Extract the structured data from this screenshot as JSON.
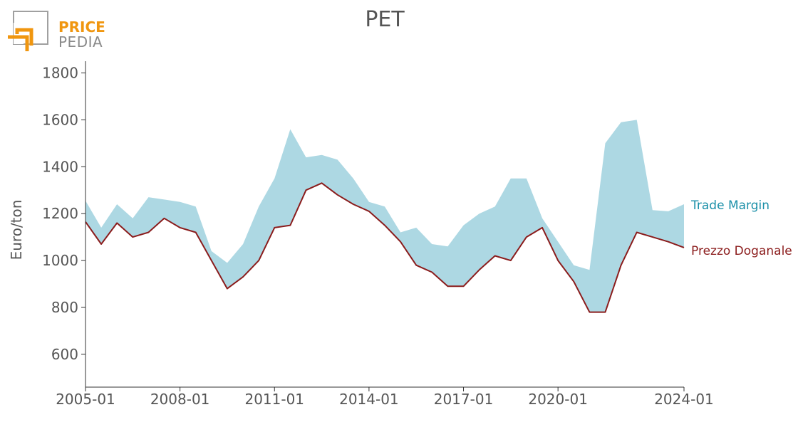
{
  "logo": {
    "line1": "PRICE",
    "line2": "PEDIA"
  },
  "colors": {
    "band": "#add8e3",
    "line": "#8b1c1c",
    "margin_label": "#1a8fa8",
    "axis": "#333333",
    "tick_text": "#555555"
  },
  "chart_data": {
    "type": "area",
    "title": "PET",
    "ylabel": "Euro/ton",
    "xlabel": "",
    "ylim": [
      460,
      1850
    ],
    "xlim": [
      "2005-01",
      "2024-01"
    ],
    "yticks": [
      600,
      800,
      1000,
      1200,
      1400,
      1600,
      1800
    ],
    "xticks": [
      "2005-01",
      "2008-01",
      "2011-01",
      "2014-01",
      "2017-01",
      "2020-01",
      "2024-01"
    ],
    "grid": false,
    "legend": "inline-right",
    "x": [
      "2005-01",
      "2005-07",
      "2006-01",
      "2006-07",
      "2007-01",
      "2007-07",
      "2008-01",
      "2008-07",
      "2009-01",
      "2009-07",
      "2010-01",
      "2010-07",
      "2011-01",
      "2011-07",
      "2012-01",
      "2012-07",
      "2013-01",
      "2013-07",
      "2014-01",
      "2014-07",
      "2015-01",
      "2015-07",
      "2016-01",
      "2016-07",
      "2017-01",
      "2017-07",
      "2018-01",
      "2018-07",
      "2019-01",
      "2019-07",
      "2020-01",
      "2020-07",
      "2021-01",
      "2021-07",
      "2022-01",
      "2022-07",
      "2023-01",
      "2023-07",
      "2024-01"
    ],
    "series": [
      {
        "name": "Prezzo Doganale",
        "role": "lower",
        "values": [
          1165,
          1070,
          1160,
          1100,
          1120,
          1180,
          1140,
          1120,
          1000,
          880,
          930,
          1000,
          1140,
          1150,
          1300,
          1330,
          1280,
          1240,
          1210,
          1150,
          1080,
          980,
          950,
          890,
          890,
          960,
          1020,
          1000,
          1100,
          1140,
          1000,
          910,
          780,
          780,
          980,
          1120,
          1100,
          1080,
          1055
        ]
      },
      {
        "name": "Trade Margin",
        "role": "upper",
        "values": [
          1255,
          1140,
          1240,
          1180,
          1270,
          1260,
          1250,
          1230,
          1040,
          990,
          1070,
          1230,
          1350,
          1560,
          1440,
          1450,
          1430,
          1350,
          1250,
          1230,
          1120,
          1140,
          1070,
          1060,
          1150,
          1200,
          1230,
          1350,
          1350,
          1180,
          1080,
          980,
          960,
          1500,
          1590,
          1600,
          1215,
          1210,
          1240
        ]
      }
    ]
  }
}
